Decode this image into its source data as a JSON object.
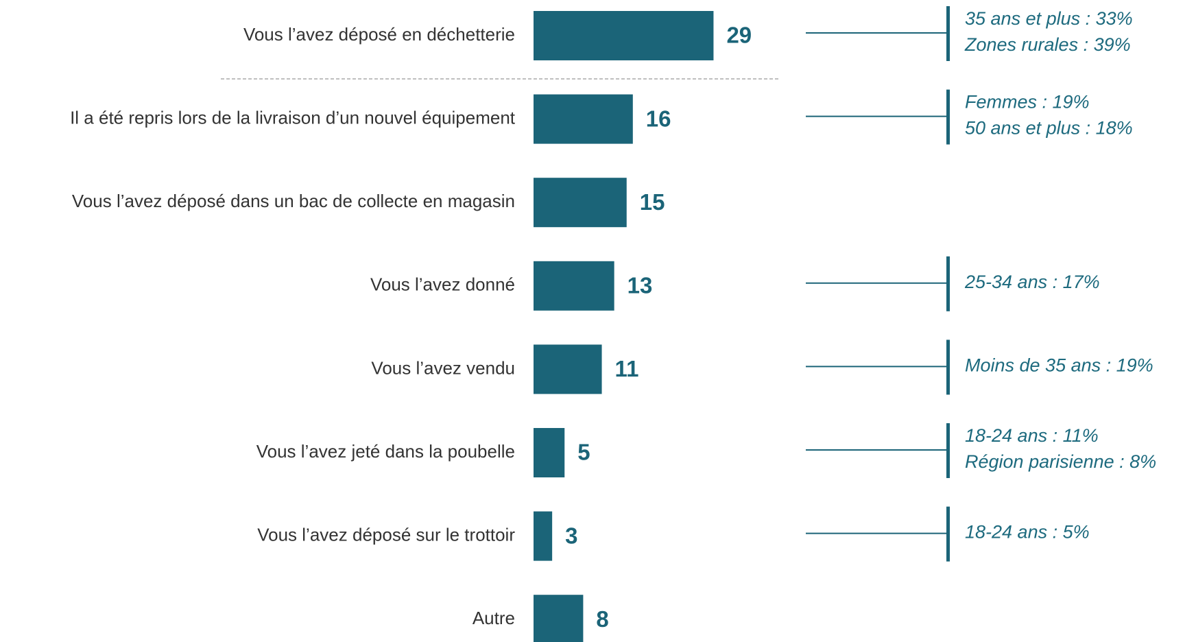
{
  "chart_data": {
    "type": "bar",
    "orientation": "horizontal",
    "color": "#1b6478",
    "categories": [
      "Vous l’avez déposé en déchetterie",
      "Il a été repris lors de la livraison d’un nouvel équipement",
      "Vous l’avez déposé dans un bac de collecte en magasin",
      "Vous l’avez donné",
      "Vous l’avez vendu",
      "Vous l’avez jeté dans la poubelle",
      "Vous l’avez déposé sur le trottoir",
      "Autre"
    ],
    "values": [
      29,
      16,
      15,
      13,
      11,
      5,
      3,
      8
    ],
    "annotations": [
      [
        "35 ans et plus : 33%",
        "Zones rurales : 39%"
      ],
      [
        "Femmes : 19%",
        "50 ans et plus : 18%"
      ],
      null,
      [
        "25-34 ans : 17%"
      ],
      [
        "Moins de 35 ans : 19%"
      ],
      [
        "18-24 ans : 11%",
        "Région parisienne : 8%"
      ],
      [
        "18-24 ans : 5%"
      ],
      null
    ]
  }
}
